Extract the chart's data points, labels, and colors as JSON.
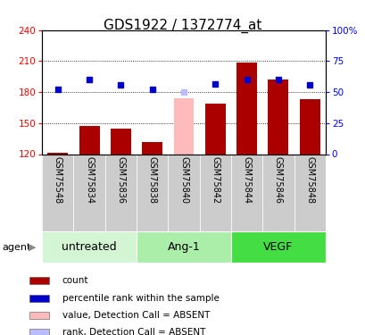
{
  "title": "GDS1922 / 1372774_at",
  "samples": [
    "GSM75548",
    "GSM75834",
    "GSM75836",
    "GSM75838",
    "GSM75840",
    "GSM75842",
    "GSM75844",
    "GSM75846",
    "GSM75848"
  ],
  "bar_values": [
    121,
    147,
    145,
    132,
    174,
    169,
    209,
    192,
    173
  ],
  "bar_absent": [
    false,
    false,
    false,
    false,
    true,
    false,
    false,
    false,
    false
  ],
  "dot_values": [
    183,
    192,
    187,
    183,
    180,
    188,
    192,
    192,
    187
  ],
  "dot_absent": [
    false,
    false,
    false,
    false,
    true,
    false,
    false,
    false,
    false
  ],
  "groups": [
    {
      "label": "untreated",
      "start": 0,
      "end": 3,
      "color": "#d4f5d4"
    },
    {
      "label": "Ang-1",
      "start": 3,
      "end": 6,
      "color": "#aaeeaa"
    },
    {
      "label": "VEGF",
      "start": 6,
      "end": 9,
      "color": "#44dd44"
    }
  ],
  "ylim_left": [
    120,
    240
  ],
  "yticks_left": [
    120,
    150,
    180,
    210,
    240
  ],
  "ylim_right": [
    0,
    100
  ],
  "yticks_right": [
    0,
    25,
    50,
    75,
    100
  ],
  "bar_color": "#aa0000",
  "bar_absent_color": "#ffbbbb",
  "dot_color": "#0000cc",
  "dot_absent_color": "#bbbbff",
  "bar_bottom": 120,
  "legend_items": [
    {
      "color": "#aa0000",
      "label": "count"
    },
    {
      "color": "#0000cc",
      "label": "percentile rank within the sample"
    },
    {
      "color": "#ffbbbb",
      "label": "value, Detection Call = ABSENT"
    },
    {
      "color": "#bbbbff",
      "label": "rank, Detection Call = ABSENT"
    }
  ],
  "title_fontsize": 11,
  "group_label_fontsize": 9,
  "agent_label": "agent"
}
